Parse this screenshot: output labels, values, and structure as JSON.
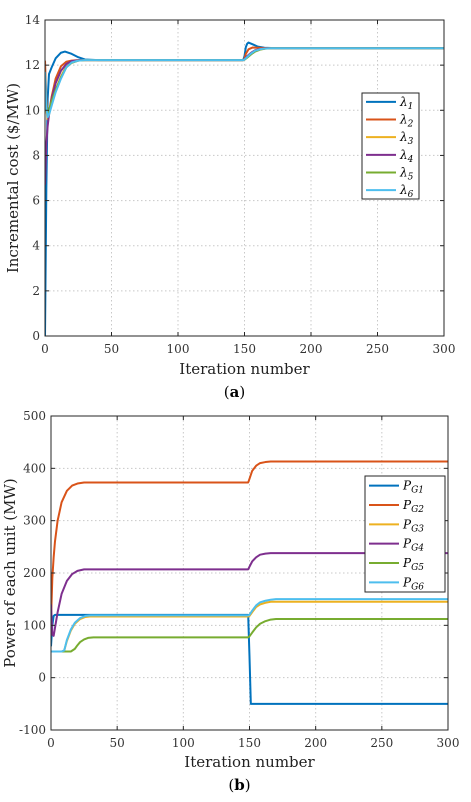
{
  "chart_data": [
    {
      "type": "line",
      "xlabel": "Iteration number",
      "ylabel": "Incremental cost ($/MW)",
      "sublabel": "(a)",
      "xlim": [
        0,
        300
      ],
      "ylim": [
        0,
        14
      ],
      "xticks": [
        "0",
        "50",
        "100",
        "150",
        "200",
        "250",
        "300"
      ],
      "yticks": [
        "0",
        "2",
        "4",
        "6",
        "8",
        "10",
        "12",
        "14"
      ],
      "grid": true,
      "legend": "right",
      "series": [
        {
          "name": "λ1",
          "color": "#0072BD",
          "x": [
            0,
            1,
            2,
            3,
            5,
            8,
            12,
            15,
            20,
            25,
            30,
            40,
            60,
            100,
            149,
            150,
            151,
            152,
            153,
            155,
            157,
            160,
            165,
            170,
            180,
            200,
            250,
            300
          ],
          "y": [
            0,
            6.5,
            10.5,
            11.6,
            11.9,
            12.3,
            12.55,
            12.6,
            12.5,
            12.35,
            12.25,
            12.22,
            12.22,
            12.22,
            12.22,
            12.4,
            12.8,
            12.95,
            13.0,
            12.95,
            12.9,
            12.82,
            12.77,
            12.76,
            12.75,
            12.75,
            12.75,
            12.75
          ]
        },
        {
          "name": "λ2",
          "color": "#D95319",
          "x": [
            0,
            1,
            2,
            3,
            5,
            8,
            12,
            16,
            20,
            25,
            30,
            40,
            60,
            100,
            149,
            150,
            151,
            153,
            156,
            160,
            165,
            170,
            180,
            200,
            250,
            300
          ],
          "y": [
            12.2,
            10.5,
            9.6,
            9.9,
            10.6,
            11.4,
            11.95,
            12.15,
            12.2,
            12.22,
            12.22,
            12.22,
            12.22,
            12.22,
            12.22,
            12.3,
            12.5,
            12.7,
            12.78,
            12.77,
            12.76,
            12.75,
            12.75,
            12.75,
            12.75,
            12.75
          ]
        },
        {
          "name": "λ3",
          "color": "#EDB120",
          "x": [
            0,
            1,
            2,
            3,
            5,
            8,
            12,
            16,
            20,
            25,
            30,
            40,
            60,
            100,
            149,
            150,
            152,
            155,
            158,
            162,
            166,
            170,
            180,
            200,
            250,
            300
          ],
          "y": [
            11.7,
            10.0,
            9.6,
            9.8,
            10.3,
            10.9,
            11.5,
            11.95,
            12.15,
            12.2,
            12.22,
            12.22,
            12.22,
            12.22,
            12.22,
            12.25,
            12.35,
            12.5,
            12.62,
            12.7,
            12.74,
            12.75,
            12.75,
            12.75,
            12.75,
            12.75
          ]
        },
        {
          "name": "λ4",
          "color": "#7E2F8E",
          "x": [
            0,
            1,
            2,
            3,
            5,
            8,
            12,
            16,
            20,
            25,
            30,
            40,
            60,
            100,
            149,
            150,
            152,
            155,
            158,
            162,
            166,
            170,
            180,
            200,
            250,
            300
          ],
          "y": [
            6.7,
            8.5,
            9.3,
            9.8,
            10.5,
            11.2,
            11.75,
            12.05,
            12.18,
            12.22,
            12.22,
            12.22,
            12.22,
            12.22,
            12.22,
            12.26,
            12.4,
            12.55,
            12.66,
            12.72,
            12.75,
            12.75,
            12.75,
            12.75,
            12.75,
            12.75
          ]
        },
        {
          "name": "λ5",
          "color": "#77AC30",
          "x": [
            0,
            1,
            2,
            3,
            5,
            8,
            12,
            16,
            20,
            25,
            30,
            40,
            60,
            100,
            149,
            150,
            152,
            155,
            158,
            162,
            166,
            170,
            180,
            200,
            250,
            300
          ],
          "y": [
            11.0,
            10.2,
            9.9,
            10.0,
            10.4,
            10.9,
            11.45,
            11.9,
            12.1,
            12.2,
            12.22,
            12.22,
            12.22,
            12.22,
            12.22,
            12.24,
            12.33,
            12.48,
            12.6,
            12.69,
            12.73,
            12.75,
            12.75,
            12.75,
            12.75,
            12.75
          ]
        },
        {
          "name": "λ6",
          "color": "#4DBEEE",
          "x": [
            0,
            1,
            2,
            3,
            5,
            8,
            12,
            16,
            20,
            25,
            30,
            40,
            60,
            100,
            149,
            150,
            152,
            155,
            158,
            162,
            166,
            170,
            180,
            200,
            250,
            300
          ],
          "y": [
            11.7,
            10.1,
            9.7,
            9.8,
            10.2,
            10.8,
            11.4,
            11.9,
            12.12,
            12.2,
            12.22,
            12.22,
            12.22,
            12.22,
            12.22,
            12.25,
            12.36,
            12.52,
            12.64,
            12.71,
            12.74,
            12.75,
            12.75,
            12.75,
            12.75,
            12.75
          ]
        }
      ]
    },
    {
      "type": "line",
      "xlabel": "Iteration number",
      "ylabel": "Power of each unit (MW)",
      "sublabel": "(b)",
      "xlim": [
        0,
        300
      ],
      "ylim": [
        -100,
        500
      ],
      "xticks": [
        "0",
        "50",
        "100",
        "150",
        "200",
        "250",
        "300"
      ],
      "yticks": [
        "-100",
        "0",
        "100",
        "200",
        "300",
        "400",
        "500"
      ],
      "grid": true,
      "legend": "right",
      "series": [
        {
          "name": "PG1",
          "color": "#0072BD",
          "x": [
            0,
            1,
            2,
            3,
            5,
            10,
            20,
            50,
            100,
            149,
            150,
            151,
            160,
            200,
            250,
            300
          ],
          "y": [
            60,
            100,
            118,
            120,
            120,
            120,
            120,
            120,
            120,
            120,
            40,
            -50,
            -50,
            -50,
            -50,
            -50
          ]
        },
        {
          "name": "PG2",
          "color": "#D95319",
          "x": [
            0,
            1,
            2,
            3,
            5,
            8,
            12,
            16,
            20,
            25,
            30,
            40,
            60,
            100,
            149,
            150,
            152,
            155,
            158,
            162,
            166,
            170,
            180,
            200,
            250,
            300
          ],
          "y": [
            110,
            190,
            230,
            260,
            300,
            335,
            357,
            367,
            371,
            373,
            373,
            373,
            373,
            373,
            373,
            380,
            395,
            405,
            410,
            412,
            413,
            413,
            413,
            413,
            413,
            413
          ]
        },
        {
          "name": "PG3",
          "color": "#EDB120",
          "x": [
            0,
            1,
            3,
            5,
            8,
            10,
            12,
            15,
            18,
            22,
            26,
            30,
            40,
            60,
            100,
            149,
            150,
            152,
            155,
            158,
            162,
            166,
            170,
            180,
            200,
            250,
            300
          ],
          "y": [
            50,
            50,
            50,
            50,
            50,
            52,
            70,
            90,
            103,
            112,
            116,
            117,
            117,
            117,
            117,
            117,
            118,
            125,
            135,
            140,
            143,
            145,
            145,
            145,
            145,
            145,
            145
          ]
        },
        {
          "name": "PG4",
          "color": "#7E2F8E",
          "x": [
            0,
            1,
            2,
            3,
            5,
            8,
            12,
            16,
            20,
            25,
            30,
            40,
            60,
            100,
            149,
            150,
            152,
            155,
            158,
            162,
            166,
            170,
            180,
            200,
            250,
            300
          ],
          "y": [
            140,
            82,
            80,
            95,
            125,
            160,
            185,
            198,
            204,
            207,
            207,
            207,
            207,
            207,
            207,
            212,
            222,
            230,
            235,
            237,
            238,
            238,
            238,
            238,
            238,
            238
          ]
        },
        {
          "name": "PG5",
          "color": "#77AC30",
          "x": [
            0,
            1,
            5,
            10,
            15,
            18,
            20,
            22,
            25,
            28,
            32,
            36,
            40,
            60,
            100,
            149,
            150,
            152,
            155,
            158,
            162,
            166,
            170,
            180,
            200,
            250,
            300
          ],
          "y": [
            50,
            50,
            50,
            50,
            50,
            55,
            62,
            68,
            73,
            76,
            77,
            77,
            77,
            77,
            77,
            77,
            79,
            86,
            96,
            103,
            108,
            111,
            112,
            112,
            112,
            112,
            112
          ]
        },
        {
          "name": "PG6",
          "color": "#4DBEEE",
          "x": [
            0,
            1,
            3,
            5,
            8,
            10,
            12,
            15,
            18,
            22,
            26,
            30,
            40,
            60,
            100,
            149,
            150,
            152,
            155,
            158,
            162,
            166,
            170,
            180,
            200,
            250,
            300
          ],
          "y": [
            50,
            50,
            50,
            50,
            50,
            52,
            72,
            92,
            105,
            114,
            118,
            119,
            119,
            119,
            119,
            119,
            120,
            128,
            138,
            144,
            147,
            149,
            150,
            150,
            150,
            150,
            150
          ]
        }
      ]
    }
  ]
}
